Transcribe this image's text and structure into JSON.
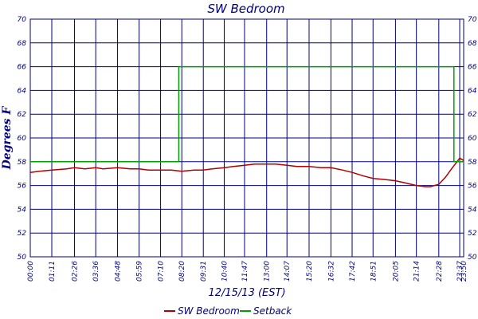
{
  "chart_data": {
    "type": "line",
    "title": "SW Bedroom",
    "xlabel": "12/15/13 (EST)",
    "ylabel": "Degrees F",
    "ylim": [
      50,
      70
    ],
    "y_ticks": [
      50,
      52,
      54,
      56,
      58,
      60,
      62,
      64,
      66,
      68,
      70
    ],
    "x_ticks": [
      "00:00",
      "01:11",
      "02:26",
      "03:36",
      "04:48",
      "05:59",
      "07:10",
      "08:20",
      "09:31",
      "10:40",
      "11:47",
      "13:00",
      "14:07",
      "15:20",
      "16:32",
      "17:42",
      "18:51",
      "20:05",
      "21:14",
      "22:28",
      "23:37",
      "23:50"
    ],
    "grid": true,
    "legend_position": "bottom",
    "series": [
      {
        "name": "SW Bedroom",
        "color": "#b00000",
        "x": [
          "00:00",
          "00:30",
          "01:11",
          "02:00",
          "02:26",
          "03:00",
          "03:36",
          "04:00",
          "04:48",
          "05:30",
          "05:59",
          "06:30",
          "07:10",
          "07:45",
          "08:20",
          "09:00",
          "09:31",
          "10:00",
          "10:40",
          "11:10",
          "11:47",
          "12:20",
          "13:00",
          "13:30",
          "14:07",
          "14:40",
          "15:20",
          "16:00",
          "16:32",
          "17:10",
          "17:42",
          "18:20",
          "18:51",
          "19:30",
          "20:05",
          "20:40",
          "21:14",
          "21:45",
          "22:00",
          "22:28",
          "22:50",
          "23:10",
          "23:25",
          "23:37",
          "23:50"
        ],
        "values": [
          57.1,
          57.2,
          57.3,
          57.4,
          57.5,
          57.4,
          57.5,
          57.4,
          57.5,
          57.4,
          57.4,
          57.3,
          57.3,
          57.3,
          57.2,
          57.3,
          57.3,
          57.4,
          57.5,
          57.6,
          57.7,
          57.8,
          57.8,
          57.8,
          57.7,
          57.6,
          57.6,
          57.5,
          57.5,
          57.3,
          57.1,
          56.8,
          56.6,
          56.5,
          56.4,
          56.2,
          56.0,
          55.9,
          55.9,
          56.1,
          56.7,
          57.4,
          57.9,
          58.3,
          58.1
        ]
      },
      {
        "name": "Setback",
        "color": "#00a000",
        "x": [
          "00:00",
          "08:10",
          "08:10",
          "23:18",
          "23:18",
          "23:50"
        ],
        "values": [
          58,
          58,
          66,
          66,
          58,
          58
        ]
      }
    ]
  }
}
